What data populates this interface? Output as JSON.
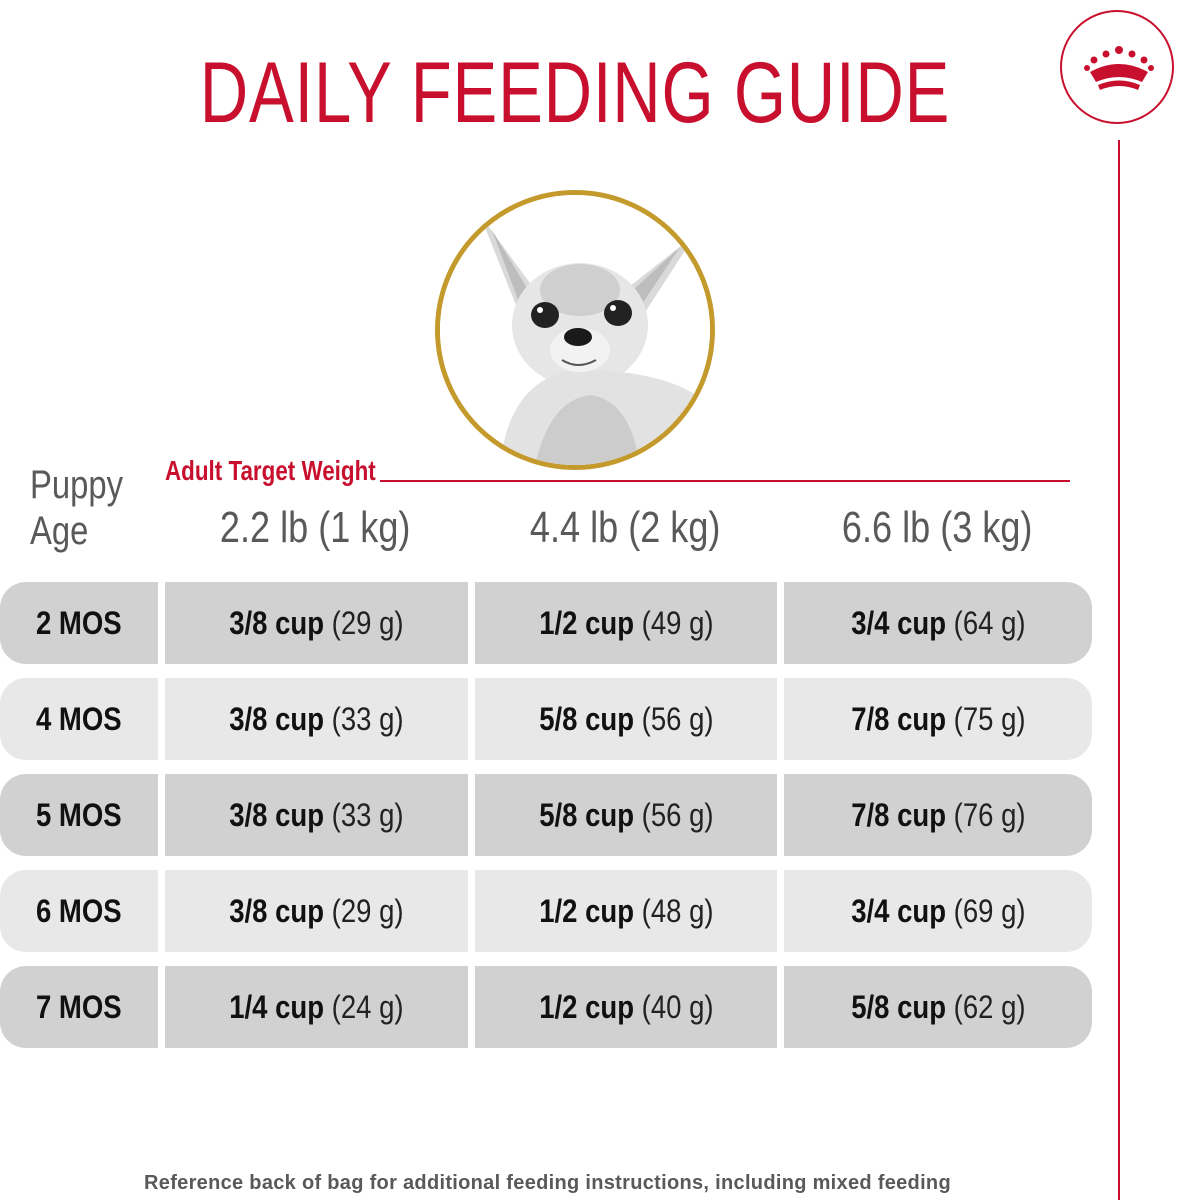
{
  "title": "DAILY FEEDING GUIDE",
  "colors": {
    "brand_red": "#c8102e",
    "gold_ring": "#c49a2c",
    "row_dark": "#d1d1d1",
    "row_light": "#e8e8e8",
    "label_gray": "#58595b"
  },
  "logo_icon": "crown-icon",
  "photo": "chihuahua-puppy-photo",
  "puppy_age_label": [
    "Puppy",
    "Age"
  ],
  "target_weight_label": "Adult Target Weight",
  "columns": [
    "2.2 lb (1 kg)",
    "4.4 lb (2 kg)",
    "6.6 lb (3 kg)"
  ],
  "rows": [
    {
      "age": "2 MOS",
      "cells": [
        {
          "cup": "3/8 cup",
          "grams": "(29 g)"
        },
        {
          "cup": "1/2 cup",
          "grams": "(49 g)"
        },
        {
          "cup": "3/4 cup",
          "grams": "(64 g)"
        }
      ]
    },
    {
      "age": "4 MOS",
      "cells": [
        {
          "cup": "3/8 cup",
          "grams": "(33 g)"
        },
        {
          "cup": "5/8 cup",
          "grams": "(56 g)"
        },
        {
          "cup": "7/8 cup",
          "grams": "(75 g)"
        }
      ]
    },
    {
      "age": "5 MOS",
      "cells": [
        {
          "cup": "3/8 cup",
          "grams": "(33 g)"
        },
        {
          "cup": "5/8 cup",
          "grams": "(56 g)"
        },
        {
          "cup": "7/8 cup",
          "grams": "(76 g)"
        }
      ]
    },
    {
      "age": "6 MOS",
      "cells": [
        {
          "cup": "3/8 cup",
          "grams": "(29 g)"
        },
        {
          "cup": "1/2 cup",
          "grams": "(48 g)"
        },
        {
          "cup": "3/4 cup",
          "grams": "(69 g)"
        }
      ]
    },
    {
      "age": "7 MOS",
      "cells": [
        {
          "cup": "1/4 cup",
          "grams": "(24 g)"
        },
        {
          "cup": "1/2 cup",
          "grams": "(40 g)"
        },
        {
          "cup": "5/8 cup",
          "grams": "(62 g)"
        }
      ]
    }
  ],
  "footnote": "Reference back of bag for additional feeding instructions, including mixed feeding"
}
